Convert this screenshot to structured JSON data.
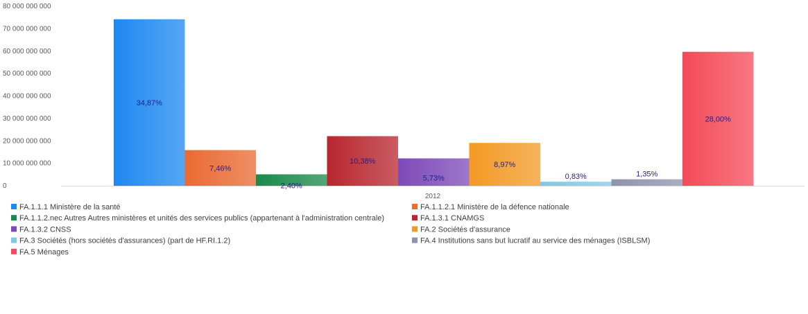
{
  "chart_data": {
    "type": "bar",
    "title": "",
    "xlabel": "",
    "ylabel": "",
    "categories": [
      "2012"
    ],
    "ylim": [
      0,
      80000000000
    ],
    "yticks": [
      {
        "value": 0,
        "label": "0"
      },
      {
        "value": 10000000000,
        "label": "10 000 000 000"
      },
      {
        "value": 20000000000,
        "label": "20 000 000 000"
      },
      {
        "value": 30000000000,
        "label": "30 000 000 000"
      },
      {
        "value": 40000000000,
        "label": "40 000 000 000"
      },
      {
        "value": 50000000000,
        "label": "50 000 000 000"
      },
      {
        "value": 60000000000,
        "label": "60 000 000 000"
      },
      {
        "value": 70000000000,
        "label": "70 000 000 000"
      },
      {
        "value": 80000000000,
        "label": "80 000 000 000"
      }
    ],
    "grid": false,
    "legend_position": "bottom",
    "series": [
      {
        "name": "FA.1.1.1 Ministère de la santé",
        "value": 74200000000,
        "label": "34,87%",
        "color": "#1e88f0"
      },
      {
        "name": "FA.1.1.2.1 Ministère de la défence nationale",
        "value": 15900000000,
        "label": "7,46%",
        "color": "#ea6a32"
      },
      {
        "name": "FA.1.1.2.nec Autres Autres ministères et unités des services publics (appartenant à l'administration centrale)",
        "value": 5100000000,
        "label": "2,40%",
        "color": "#1a8a4a"
      },
      {
        "name": "FA.1.3.1 CNAMGS",
        "value": 22100000000,
        "label": "10,38%",
        "color": "#b8262e"
      },
      {
        "name": "FA.1.3.2 CNSS",
        "value": 12200000000,
        "label": "5,73%",
        "color": "#7d4ab8"
      },
      {
        "name": "FA.2 Sociétés d'assurance",
        "value": 19100000000,
        "label": "8,97%",
        "color": "#f39a25"
      },
      {
        "name": "FA.3 Sociétés (hors sociétés d'assurances) (part de HF.RI.1.2)",
        "value": 1800000000,
        "label": "0,83%",
        "color": "#7ec8e8"
      },
      {
        "name": "FA.4 Institutions sans but lucratif au service des ménages (ISBLSM)",
        "value": 2900000000,
        "label": "1,35%",
        "color": "#8e93ad"
      },
      {
        "name": "FA.5 Ménages",
        "value": 59700000000,
        "label": "28,00%",
        "color": "#f44a58"
      }
    ]
  }
}
